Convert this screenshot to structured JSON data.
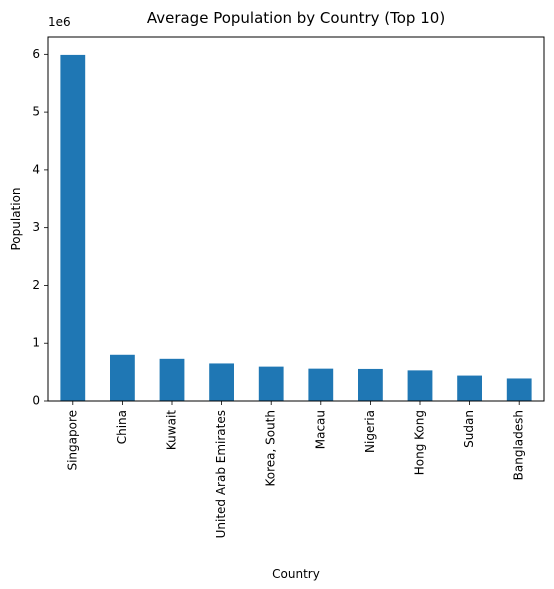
{
  "chart_data": {
    "type": "bar",
    "title": "Average Population by Country (Top 10)",
    "xlabel": "Country",
    "ylabel": "Population",
    "y_offset_text": "1e6",
    "y_multiplier": 1000000,
    "ylim": [
      0,
      6300000
    ],
    "yticks": [
      0,
      1,
      2,
      3,
      4,
      5,
      6
    ],
    "grid": false,
    "legend": "none",
    "bar_color": "#1f77b4",
    "categories": [
      "Singapore",
      "China",
      "Kuwait",
      "United Arab Emirates",
      "Korea, South",
      "Macau",
      "Nigeria",
      "Hong Kong",
      "Sudan",
      "Bangladesh"
    ],
    "values": [
      5990000,
      800000,
      730000,
      650000,
      595000,
      560000,
      555000,
      530000,
      440000,
      390000
    ]
  }
}
